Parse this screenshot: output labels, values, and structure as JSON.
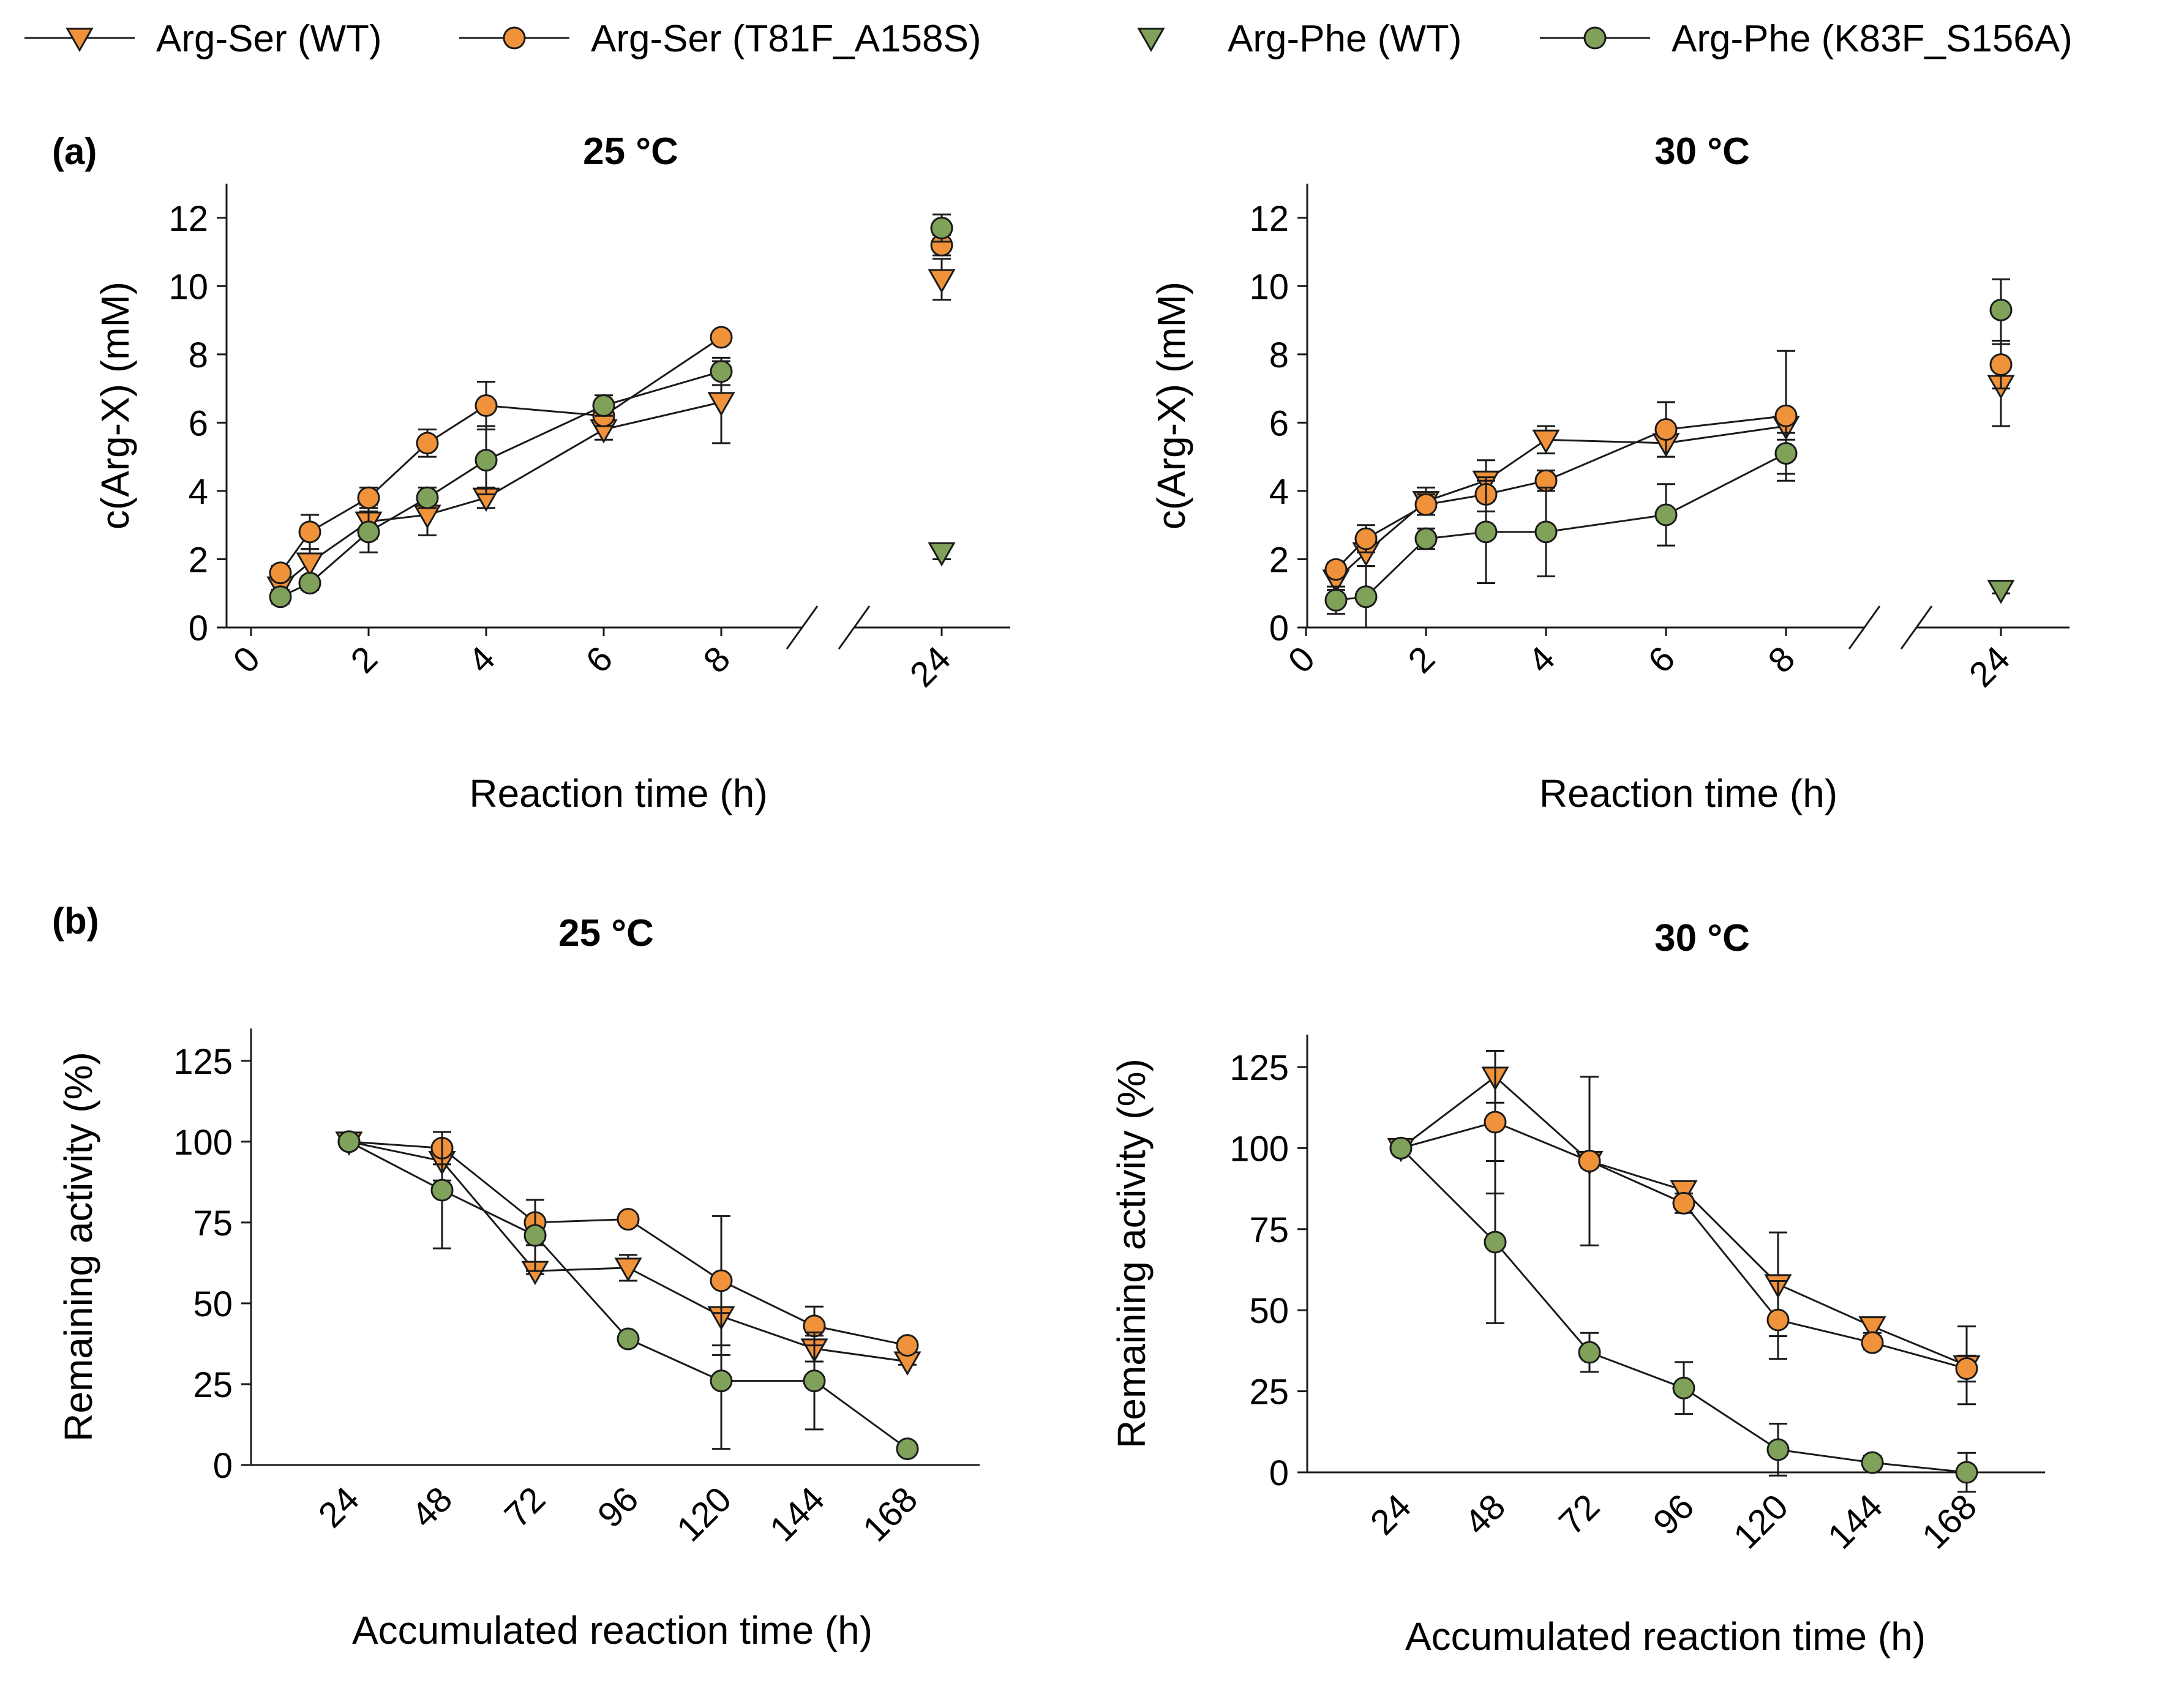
{
  "colors": {
    "orange": "#F0923A",
    "green": "#7FA159",
    "line": "#1a1a1a"
  },
  "legend": [
    {
      "label": "Arg-Ser (WT)",
      "marker": "triangle-down",
      "color": "orange",
      "line": true
    },
    {
      "label": "Arg-Ser (T81F_A158S)",
      "marker": "circle",
      "color": "orange",
      "line": true
    },
    {
      "label": "Arg-Phe (WT)",
      "marker": "triangle-down",
      "color": "green",
      "line": false
    },
    {
      "label": "Arg-Phe (K83F_S156A)",
      "marker": "circle",
      "color": "green",
      "line": true
    }
  ],
  "panel_labels": {
    "a": "(a)",
    "b": "(b)"
  },
  "chart_data": [
    {
      "id": "a25",
      "type": "line",
      "title": "25 °C",
      "xlabel": "Reaction time (h)",
      "ylabel": "c(Arg-X) (mM)",
      "ylim": [
        0,
        13
      ],
      "yticks": [
        0,
        2,
        4,
        6,
        8,
        10,
        12
      ],
      "xticks": [
        "0",
        "2",
        "4",
        "6",
        "8",
        "24"
      ],
      "broken_axis": true,
      "series": [
        {
          "name": "Arg-Ser (WT)",
          "x": [
            0.5,
            1,
            2,
            3,
            4,
            6,
            8
          ],
          "y": [
            1.2,
            1.9,
            3.1,
            3.3,
            3.8,
            5.8,
            6.6
          ],
          "err": [
            0.3,
            0.4,
            0.5,
            0.6,
            0.3,
            0.3,
            1.2
          ],
          "end24": {
            "y": 10.2,
            "err": 0.6
          }
        },
        {
          "name": "Arg-Ser (T81F_A158S)",
          "x": [
            0.5,
            1,
            2,
            3,
            4,
            6,
            8
          ],
          "y": [
            1.6,
            2.8,
            3.8,
            5.4,
            6.5,
            6.2,
            8.5
          ],
          "err": [
            0.2,
            0.5,
            0.3,
            0.4,
            0.7,
            0.3,
            0.1
          ],
          "end24": {
            "y": 11.2,
            "err": 0.3
          }
        },
        {
          "name": "Arg-Phe (WT)",
          "x": [],
          "y": [],
          "err": [],
          "end24": {
            "y": 2.2,
            "err": 0.2
          }
        },
        {
          "name": "Arg-Phe (K83F_S156A)",
          "x": [
            0.5,
            1,
            2,
            3,
            4,
            6,
            8
          ],
          "y": [
            0.9,
            1.3,
            2.8,
            3.8,
            4.9,
            6.5,
            7.5
          ],
          "err": [
            0.2,
            0.2,
            0.6,
            0.3,
            1.0,
            0.3,
            0.4
          ],
          "end24": {
            "y": 11.7,
            "err": 0.4
          }
        }
      ]
    },
    {
      "id": "a30",
      "type": "line",
      "title": "30 °C",
      "xlabel": "Reaction time (h)",
      "ylabel": "c(Arg-X) (mM)",
      "ylim": [
        0,
        13
      ],
      "yticks": [
        0,
        2,
        4,
        6,
        8,
        10,
        12
      ],
      "xticks": [
        "0",
        "2",
        "4",
        "6",
        "8",
        "24"
      ],
      "broken_axis": true,
      "series": [
        {
          "name": "Arg-Ser (WT)",
          "x": [
            0.5,
            1,
            2,
            3,
            4,
            6,
            8
          ],
          "y": [
            1.4,
            2.2,
            3.7,
            4.3,
            5.5,
            5.4,
            5.9
          ],
          "err": [
            0.3,
            0.4,
            0.4,
            0.6,
            0.4,
            0.4,
            0.4
          ],
          "end24": {
            "y": 7.1,
            "err": 1.2
          }
        },
        {
          "name": "Arg-Ser (T81F_A158S)",
          "x": [
            0.5,
            1,
            2,
            3,
            4,
            6,
            8
          ],
          "y": [
            1.7,
            2.6,
            3.6,
            3.9,
            4.3,
            5.8,
            6.2
          ],
          "err": [
            0.2,
            0.4,
            0.3,
            0.5,
            0.3,
            0.8,
            1.9
          ],
          "end24": {
            "y": 7.7,
            "err": 0.7
          }
        },
        {
          "name": "Arg-Phe (WT)",
          "x": [],
          "y": [],
          "err": [],
          "end24": {
            "y": 1.1,
            "err": 0.1
          }
        },
        {
          "name": "Arg-Phe (K83F_S156A)",
          "x": [
            0.5,
            1,
            2,
            3,
            4,
            6,
            8
          ],
          "y": [
            0.8,
            0.9,
            2.6,
            2.8,
            2.8,
            3.3,
            5.1
          ],
          "err": [
            0.4,
            0.9,
            0.3,
            1.5,
            1.3,
            0.9,
            0.6
          ],
          "end24": {
            "y": 9.3,
            "err": 0.9
          }
        }
      ]
    },
    {
      "id": "b25",
      "type": "line",
      "title": "25 °C",
      "xlabel": "Accumulated reaction time (h)",
      "ylabel": "Remaining activity (%)",
      "ylim": [
        0,
        135
      ],
      "yticks": [
        0,
        25,
        50,
        75,
        100,
        125
      ],
      "categories": [
        "24",
        "48",
        "72",
        "96",
        "120",
        "144",
        "168"
      ],
      "series": [
        {
          "name": "Arg-Ser (WT)",
          "values": [
            100,
            94,
            60,
            61,
            46,
            36,
            32
          ],
          "err": [
            1,
            6,
            1,
            4,
            12,
            4,
            1
          ]
        },
        {
          "name": "Arg-Ser (T81F_A158S)",
          "values": [
            100,
            98,
            75,
            76,
            57,
            43,
            37
          ],
          "err": [
            1,
            5,
            7,
            1,
            20,
            6,
            1
          ]
        },
        {
          "name": "Arg-Phe (K83F_S156A)",
          "values": [
            100,
            85,
            71,
            39,
            26,
            26,
            5
          ],
          "err": [
            1,
            18,
            11,
            2,
            21,
            15,
            1
          ]
        }
      ]
    },
    {
      "id": "b30",
      "type": "line",
      "title": "30 °C",
      "xlabel": "Accumulated reaction time (h)",
      "ylabel": "Remaining activity (%)",
      "ylim": [
        0,
        135
      ],
      "yticks": [
        0,
        25,
        50,
        75,
        100,
        125
      ],
      "categories": [
        "24",
        "48",
        "72",
        "96",
        "120",
        "144",
        "168"
      ],
      "series": [
        {
          "name": "Arg-Ser (WT)",
          "values": [
            100,
            122,
            96,
            87,
            58,
            45,
            33
          ],
          "err": [
            1,
            8,
            26,
            2,
            16,
            2,
            12
          ]
        },
        {
          "name": "Arg-Ser (T81F_A158S)",
          "values": [
            100,
            108,
            96,
            83,
            47,
            40,
            32
          ],
          "err": [
            1,
            22,
            2,
            3,
            12,
            2,
            4
          ]
        },
        {
          "name": "Arg-Phe (K83F_S156A)",
          "values": [
            100,
            71,
            37,
            26,
            7,
            3,
            0
          ],
          "err": [
            1,
            25,
            6,
            8,
            8,
            2,
            6
          ]
        }
      ]
    }
  ]
}
